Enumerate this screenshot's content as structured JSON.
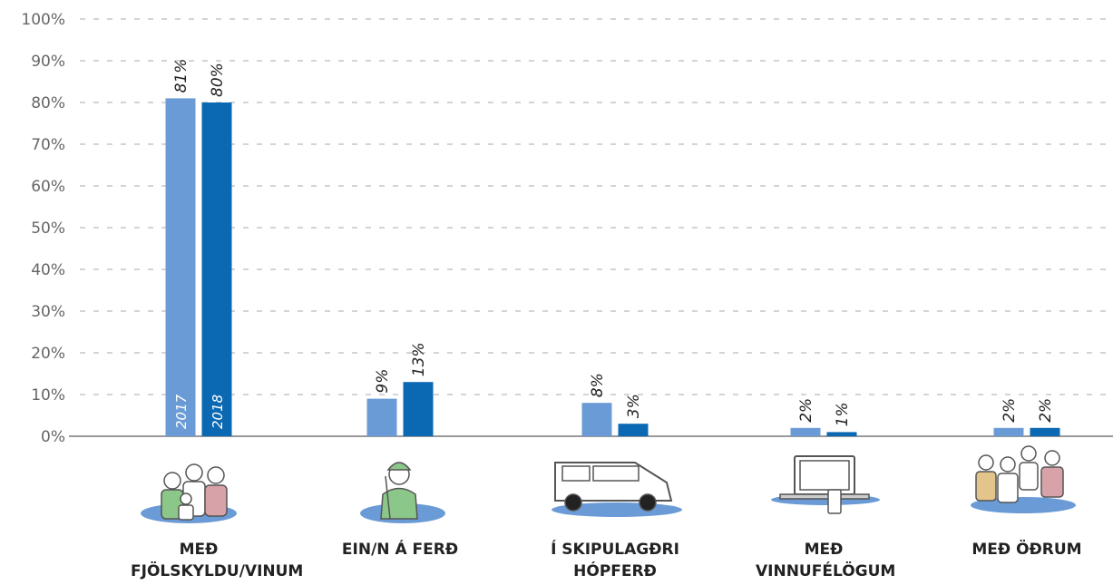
{
  "chart_data": {
    "type": "bar",
    "categories": [
      "MEÐ FJÖLSKYLDU/VINUM",
      "EIN/N Á FERÐ",
      "Í SKIPULAGÐRI HÓPFERÐ",
      "MEÐ VINNUFÉLÖGUM",
      "MEÐ ÖÐRUM"
    ],
    "series": [
      {
        "name": "2017",
        "color": "#6b9bd6",
        "values": [
          81,
          9,
          8,
          2,
          2
        ],
        "value_labels": [
          "81%",
          "9%",
          "8%",
          "2%",
          "2%"
        ]
      },
      {
        "name": "2018",
        "color": "#0b68b2",
        "values": [
          80,
          13,
          3,
          1,
          2
        ],
        "value_labels": [
          "80%",
          "13%",
          "3%",
          "1%",
          "2%"
        ]
      }
    ],
    "ylim": [
      0,
      100
    ],
    "yticks": [
      {
        "value": 0,
        "label": "0%"
      },
      {
        "value": 10,
        "label": "10%"
      },
      {
        "value": 20,
        "label": "20%"
      },
      {
        "value": 30,
        "label": "30%"
      },
      {
        "value": 40,
        "label": "40%"
      },
      {
        "value": 50,
        "label": "50%"
      },
      {
        "value": 60,
        "label": "60%"
      },
      {
        "value": 70,
        "label": "70%"
      },
      {
        "value": 80,
        "label": "80%"
      },
      {
        "value": 90,
        "label": "90%"
      },
      {
        "value": 100,
        "label": "100%"
      }
    ],
    "grid": true
  }
}
